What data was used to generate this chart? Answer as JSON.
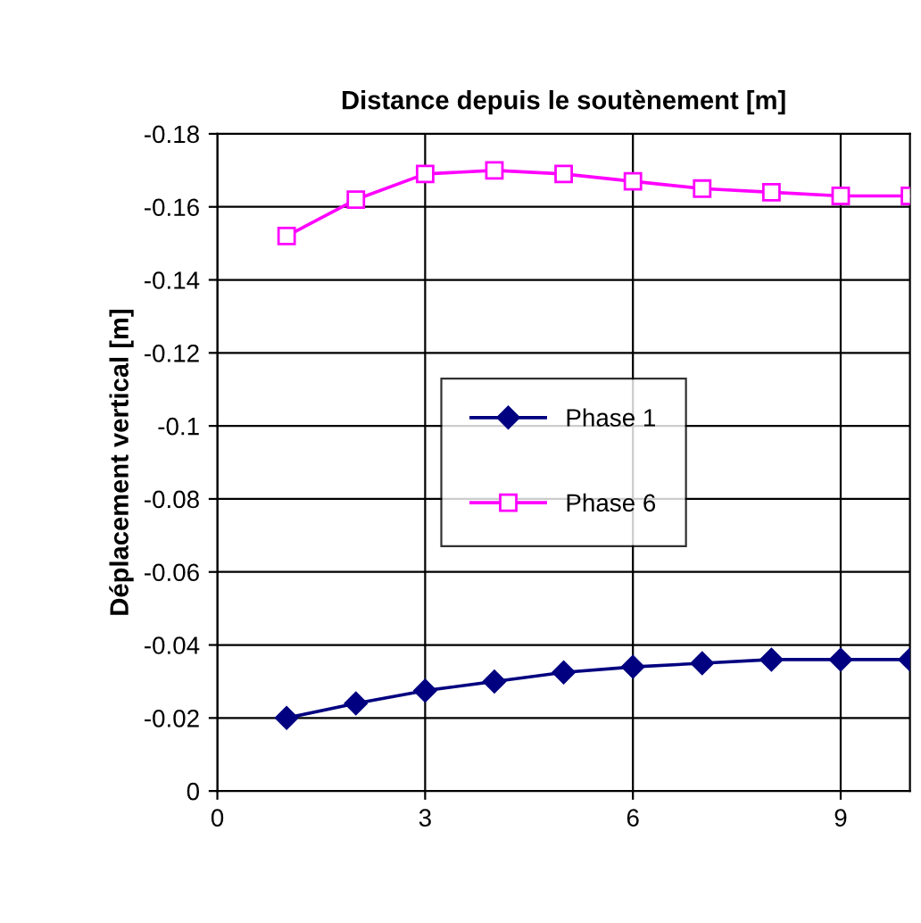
{
  "chart_data": {
    "type": "line",
    "xlabel": "Distance depuis le soutènement [m]",
    "ylabel": "Déplacement vertical [m]",
    "x": [
      1,
      2,
      3,
      4,
      5,
      6,
      7,
      8,
      9,
      10
    ],
    "series": [
      {
        "name": "Phase 1",
        "color": "#000080",
        "marker": "diamond",
        "values": [
          -0.02,
          -0.024,
          -0.0275,
          -0.03,
          -0.0325,
          -0.034,
          -0.035,
          -0.036,
          -0.036,
          -0.036
        ]
      },
      {
        "name": "Phase 6",
        "color": "#ff00ff",
        "marker": "square",
        "values": [
          -0.152,
          -0.162,
          -0.169,
          -0.17,
          -0.169,
          -0.167,
          -0.165,
          -0.164,
          -0.163,
          -0.163
        ]
      }
    ],
    "xlim": [
      0,
      10
    ],
    "xticks": [
      0,
      3,
      6,
      9
    ],
    "ylim": [
      0,
      -0.18
    ],
    "yticks": [
      {
        "value": 0,
        "label": "0"
      },
      {
        "value": -0.02,
        "label": "-0.02"
      },
      {
        "value": -0.04,
        "label": "-0.04"
      },
      {
        "value": -0.06,
        "label": "-0.06"
      },
      {
        "value": -0.08,
        "label": "-0.08"
      },
      {
        "value": -0.1,
        "label": "-0.1"
      },
      {
        "value": -0.12,
        "label": "-0.12"
      },
      {
        "value": -0.14,
        "label": "-0.14"
      },
      {
        "value": -0.16,
        "label": "-0.16"
      },
      {
        "value": -0.18,
        "label": "-0.18"
      }
    ],
    "grid": true,
    "legend": "center",
    "line_style": "solid"
  }
}
